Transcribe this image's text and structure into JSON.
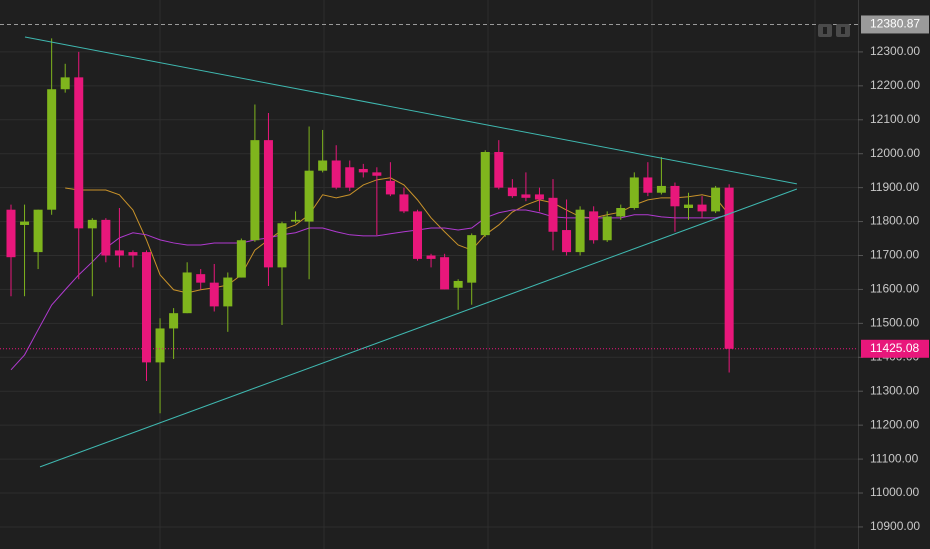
{
  "chart_data": {
    "type": "candlestick",
    "open": [
      11835,
      11790,
      11710,
      11835,
      12190,
      12225,
      11780,
      11805,
      11715,
      11710,
      11710,
      11385,
      11485,
      11530,
      11645,
      11620,
      11550,
      11635,
      11745,
      12040,
      11665,
      11800,
      11800,
      11950,
      11980,
      11960,
      11955,
      11945,
      11920,
      11880,
      11830,
      11700,
      11695,
      11605,
      11620,
      11760,
      12005,
      11900,
      11880,
      11880,
      11870,
      11775,
      11710,
      11830,
      11745,
      11815,
      11840,
      11930,
      11885,
      11905,
      11840,
      11850,
      11830,
      11900
    ],
    "high": [
      11850,
      11850,
      11835,
      12340,
      12265,
      12300,
      11810,
      11810,
      11840,
      11715,
      11715,
      11515,
      11545,
      11680,
      11660,
      11675,
      11650,
      11750,
      12145,
      12120,
      11800,
      11830,
      12080,
      12070,
      12025,
      11980,
      11970,
      11960,
      11975,
      11900,
      11835,
      11705,
      11705,
      11630,
      11765,
      12010,
      12040,
      11925,
      11945,
      11900,
      11925,
      11865,
      11845,
      11845,
      11830,
      11850,
      11945,
      11975,
      11990,
      11915,
      11885,
      11875,
      11905,
      11910
    ],
    "low": [
      11580,
      11580,
      11660,
      11820,
      12180,
      11630,
      11580,
      11680,
      11665,
      11665,
      11330,
      11235,
      11395,
      11530,
      11600,
      11535,
      11475,
      11635,
      11740,
      11610,
      11495,
      11795,
      11630,
      11945,
      11895,
      11890,
      11930,
      11760,
      11875,
      11825,
      11685,
      11665,
      11600,
      11540,
      11555,
      11755,
      11895,
      11870,
      11860,
      11830,
      11715,
      11700,
      11700,
      11735,
      11740,
      11805,
      11835,
      11875,
      11880,
      11770,
      11805,
      11810,
      11825,
      11355
    ],
    "close": [
      11695,
      11800,
      11835,
      12190,
      12225,
      11780,
      11805,
      11700,
      11700,
      11700,
      11385,
      11485,
      11530,
      11650,
      11620,
      11550,
      11635,
      11745,
      12040,
      11665,
      11795,
      11805,
      11950,
      11980,
      11900,
      11900,
      11945,
      11935,
      11880,
      11830,
      11690,
      11690,
      11600,
      11625,
      11760,
      12005,
      11900,
      11875,
      11870,
      11865,
      11770,
      11710,
      11835,
      11745,
      11815,
      11840,
      11930,
      11885,
      11905,
      11845,
      11850,
      11830,
      11900,
      11425.08
    ],
    "up_color": "#7fb51d",
    "down_color": "#e8177b",
    "series": [
      {
        "color": "#c8922a",
        "values": [
          null,
          null,
          null,
          null,
          11899,
          11893,
          11893,
          11893,
          11879,
          11834,
          11746,
          11643,
          11599,
          11590,
          11599,
          11605,
          11613,
          11643,
          11716,
          11746,
          11775,
          11790,
          11820,
          11879,
          11870,
          11879,
          11908,
          11923,
          11929,
          11908,
          11864,
          11811,
          11770,
          11731,
          11716,
          11761,
          11790,
          11828,
          11849,
          11864,
          11855,
          11834,
          11814,
          11811,
          11820,
          11828,
          11849,
          11864,
          11870,
          11870,
          11873,
          11879,
          11870,
          11820
        ]
      },
      {
        "color": "#b03ad0",
        "values": [
          11363,
          11407,
          11481,
          11554,
          11599,
          11643,
          11681,
          11722,
          11752,
          11767,
          11761,
          11746,
          11737,
          11731,
          11731,
          11737,
          11737,
          11737,
          11746,
          11752,
          11761,
          11767,
          11781,
          11781,
          11770,
          11761,
          11758,
          11758,
          11764,
          11770,
          11775,
          11781,
          11781,
          11775,
          11781,
          11811,
          11826,
          11834,
          11834,
          11826,
          11814,
          11811,
          11811,
          11811,
          11811,
          11811,
          11820,
          11820,
          11814,
          11811,
          11811,
          11811,
          11811,
          11820
        ]
      }
    ],
    "trendlines": [
      {
        "color": "#3fb8b0",
        "x": [
          1.03,
          58.0
        ],
        "y": [
          12344,
          11911
        ]
      },
      {
        "color": "#3fb8b0",
        "x": [
          2.14,
          58.0
        ],
        "y": [
          11077,
          11896
        ]
      }
    ],
    "price_lines": [
      {
        "value": 12380.87,
        "color": "#9a9a9a"
      },
      {
        "value": 11425.08,
        "color": "#e8177b"
      }
    ],
    "ylim": [
      10835,
      12453
    ],
    "yticks": [
      {
        "value": 10900,
        "label": "10900.00"
      },
      {
        "value": 11000,
        "label": "11000.00"
      },
      {
        "value": 11100,
        "label": "11100.00"
      },
      {
        "value": 11200,
        "label": "11200.00"
      },
      {
        "value": 11300,
        "label": "11300.00"
      },
      {
        "value": 11400,
        "label": "11400.00"
      },
      {
        "value": 11500,
        "label": "11500.00"
      },
      {
        "value": 11600,
        "label": "11600.00"
      },
      {
        "value": 11700,
        "label": "11700.00"
      },
      {
        "value": 11800,
        "label": "11800.00"
      },
      {
        "value": 11900,
        "label": "11900.00"
      },
      {
        "value": 12000,
        "label": "12000.00"
      },
      {
        "value": 12100,
        "label": "12100.00"
      },
      {
        "value": 12200,
        "label": "12200.00"
      },
      {
        "value": 12300,
        "label": "12300.00"
      }
    ],
    "grid": true
  }
}
